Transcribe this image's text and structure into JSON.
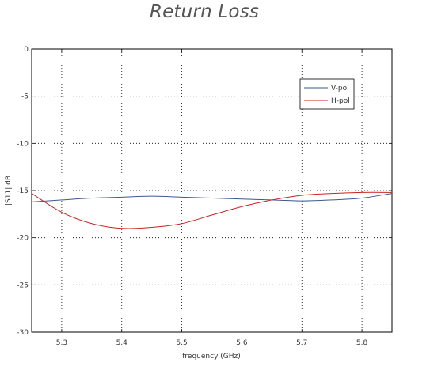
{
  "chart_data": {
    "type": "line",
    "title": "Return Loss",
    "xlabel": "frequency (GHz)",
    "ylabel": "|S11| dB",
    "xlim": [
      5.25,
      5.85
    ],
    "ylim": [
      -30,
      0
    ],
    "x_ticks": [
      5.3,
      5.4,
      5.5,
      5.6,
      5.7,
      5.8
    ],
    "x_tick_labels": [
      "5.3",
      "5.4",
      "5.5",
      "5.6",
      "5.7",
      "5.8"
    ],
    "y_ticks": [
      0,
      -5,
      -10,
      -15,
      -20,
      -25,
      -30
    ],
    "y_tick_labels": [
      "0",
      "-5",
      "-10",
      "-15",
      "-20",
      "-25",
      "-30"
    ],
    "grid": true,
    "legend_position": "top-right",
    "series": [
      {
        "name": "V-pol",
        "color": "#3a5a8c",
        "x": [
          5.25,
          5.3,
          5.35,
          5.4,
          5.45,
          5.5,
          5.55,
          5.6,
          5.65,
          5.7,
          5.75,
          5.8,
          5.85
        ],
        "y": [
          -16.2,
          -16.0,
          -15.8,
          -15.7,
          -15.6,
          -15.7,
          -15.8,
          -15.9,
          -16.0,
          -16.1,
          -16.0,
          -15.8,
          -15.3
        ]
      },
      {
        "name": "H-pol",
        "color": "#cc2222",
        "x": [
          5.25,
          5.3,
          5.35,
          5.4,
          5.45,
          5.5,
          5.55,
          5.6,
          5.65,
          5.7,
          5.75,
          5.8,
          5.85
        ],
        "y": [
          -15.3,
          -17.3,
          -18.5,
          -19.0,
          -18.9,
          -18.5,
          -17.6,
          -16.7,
          -16.0,
          -15.5,
          -15.3,
          -15.2,
          -15.2
        ]
      }
    ]
  }
}
